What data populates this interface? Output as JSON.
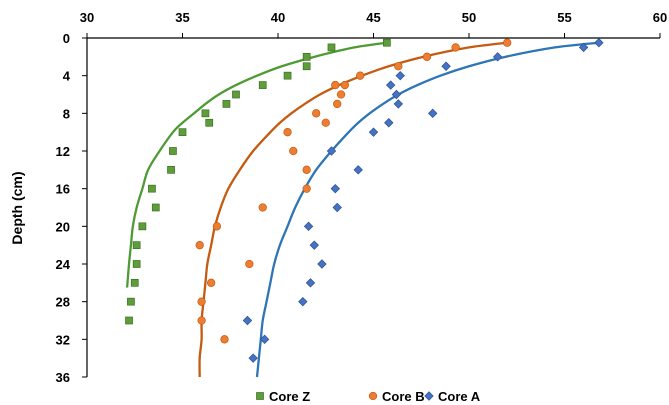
{
  "chart_data": {
    "type": "scatter",
    "title": "",
    "xlabel": "",
    "ylabel": "Depth (cm)",
    "xlim": [
      30,
      60
    ],
    "ylim": [
      0,
      36
    ],
    "y_inverted": true,
    "x_axis_position": "top",
    "x_ticks": [
      "30",
      "35",
      "40",
      "45",
      "50",
      "55",
      "60"
    ],
    "y_ticks": [
      "0",
      "4",
      "8",
      "12",
      "16",
      "20",
      "24",
      "28",
      "32",
      "36"
    ],
    "grid": false,
    "legend_position": "bottom",
    "series": [
      {
        "name": "Core Z",
        "marker": "square",
        "color": "#5E9E3A",
        "points": [
          [
            45.7,
            0.5
          ],
          [
            42.8,
            1
          ],
          [
            41.5,
            2
          ],
          [
            41.5,
            3
          ],
          [
            40.5,
            4
          ],
          [
            39.2,
            5
          ],
          [
            37.8,
            6
          ],
          [
            37.3,
            7
          ],
          [
            36.2,
            8
          ],
          [
            36.4,
            9
          ],
          [
            35.0,
            10
          ],
          [
            34.5,
            12
          ],
          [
            34.4,
            14
          ],
          [
            33.4,
            16
          ],
          [
            33.6,
            18
          ],
          [
            32.9,
            20
          ],
          [
            32.6,
            22
          ],
          [
            32.6,
            24
          ],
          [
            32.5,
            26
          ],
          [
            32.3,
            28
          ],
          [
            32.2,
            30
          ]
        ],
        "fit_curve": [
          [
            45.7,
            0.5
          ],
          [
            44.0,
            1
          ],
          [
            41.9,
            2
          ],
          [
            40.2,
            3
          ],
          [
            38.9,
            4
          ],
          [
            37.8,
            5
          ],
          [
            36.9,
            6
          ],
          [
            36.2,
            7
          ],
          [
            35.6,
            8
          ],
          [
            35.0,
            9
          ],
          [
            34.5,
            10
          ],
          [
            33.8,
            12
          ],
          [
            33.2,
            14
          ],
          [
            32.9,
            16
          ],
          [
            32.6,
            18
          ],
          [
            32.4,
            20
          ],
          [
            32.3,
            22
          ],
          [
            32.2,
            24
          ],
          [
            32.1,
            26.5
          ]
        ],
        "fit_color": "#4E9A34"
      },
      {
        "name": "Core B",
        "marker": "circle",
        "color": "#ED7D31",
        "points": [
          [
            52.0,
            0.5
          ],
          [
            49.3,
            1
          ],
          [
            47.8,
            2
          ],
          [
            46.3,
            3
          ],
          [
            44.3,
            4
          ],
          [
            43.5,
            5
          ],
          [
            43.0,
            5
          ],
          [
            43.3,
            6
          ],
          [
            43.1,
            7
          ],
          [
            42.0,
            8
          ],
          [
            42.5,
            9
          ],
          [
            40.5,
            10
          ],
          [
            40.8,
            12
          ],
          [
            41.5,
            14
          ],
          [
            41.5,
            16
          ],
          [
            39.2,
            18
          ],
          [
            36.8,
            20
          ],
          [
            35.9,
            22
          ],
          [
            38.5,
            24
          ],
          [
            36.5,
            26
          ],
          [
            36.0,
            28
          ],
          [
            36.0,
            30
          ],
          [
            37.2,
            32
          ]
        ],
        "fit_curve": [
          [
            52.0,
            0.5
          ],
          [
            50.0,
            1
          ],
          [
            47.6,
            2
          ],
          [
            45.8,
            3
          ],
          [
            44.4,
            4
          ],
          [
            43.2,
            5
          ],
          [
            42.2,
            6
          ],
          [
            41.4,
            7
          ],
          [
            40.7,
            8
          ],
          [
            40.1,
            9
          ],
          [
            39.6,
            10
          ],
          [
            38.7,
            12
          ],
          [
            38.0,
            14
          ],
          [
            37.4,
            16
          ],
          [
            37.0,
            18
          ],
          [
            36.7,
            20
          ],
          [
            36.5,
            22
          ],
          [
            36.3,
            24
          ],
          [
            36.2,
            26
          ],
          [
            36.1,
            28
          ],
          [
            36.0,
            30
          ],
          [
            36.0,
            32
          ],
          [
            35.9,
            34
          ],
          [
            35.9,
            36
          ]
        ],
        "fit_color": "#C55A11"
      },
      {
        "name": "Core A",
        "marker": "diamond",
        "color": "#4472C4",
        "points": [
          [
            56.8,
            0.5
          ],
          [
            56.0,
            1
          ],
          [
            51.5,
            2
          ],
          [
            48.8,
            3
          ],
          [
            46.4,
            4
          ],
          [
            45.9,
            5
          ],
          [
            46.2,
            6
          ],
          [
            46.3,
            7
          ],
          [
            48.1,
            8
          ],
          [
            45.0,
            10
          ],
          [
            45.8,
            9
          ],
          [
            42.8,
            12
          ],
          [
            44.2,
            14
          ],
          [
            43.0,
            16
          ],
          [
            43.1,
            18
          ],
          [
            41.6,
            20
          ],
          [
            41.9,
            22
          ],
          [
            42.3,
            24
          ],
          [
            41.7,
            26
          ],
          [
            41.3,
            28
          ],
          [
            38.4,
            30
          ],
          [
            39.3,
            32
          ],
          [
            38.7,
            34
          ]
        ],
        "fit_curve": [
          [
            56.8,
            0.5
          ],
          [
            54.5,
            1
          ],
          [
            51.9,
            2
          ],
          [
            50.0,
            3
          ],
          [
            48.5,
            4
          ],
          [
            47.3,
            5
          ],
          [
            46.3,
            6
          ],
          [
            45.5,
            7
          ],
          [
            44.8,
            8
          ],
          [
            44.2,
            9
          ],
          [
            43.7,
            10
          ],
          [
            42.8,
            12
          ],
          [
            42.0,
            14
          ],
          [
            41.4,
            16
          ],
          [
            40.9,
            18
          ],
          [
            40.5,
            20
          ],
          [
            40.1,
            22
          ],
          [
            39.8,
            24
          ],
          [
            39.6,
            26
          ],
          [
            39.4,
            28
          ],
          [
            39.2,
            30
          ],
          [
            39.1,
            32
          ],
          [
            39.0,
            34
          ],
          [
            38.9,
            36
          ]
        ],
        "fit_color": "#2E75B6"
      }
    ]
  }
}
